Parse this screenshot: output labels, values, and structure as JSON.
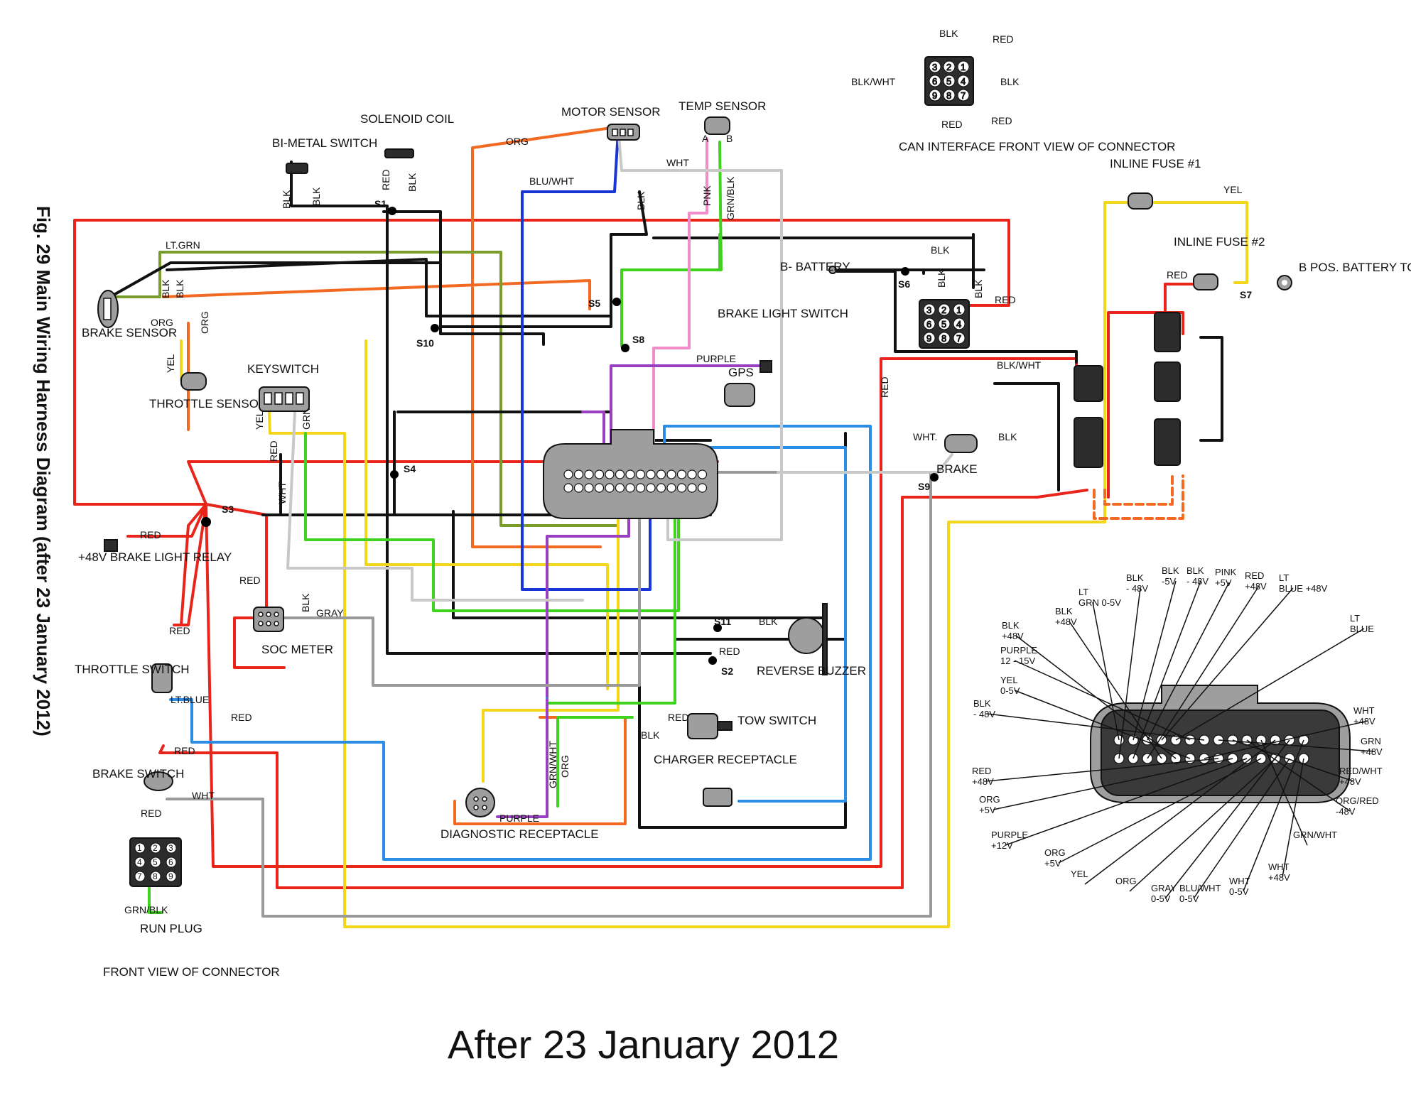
{
  "figure_caption": "Fig. 29  Main Wiring Harness Diagram (after 23 January 2012)",
  "bottom_title": "After 23 January 2012",
  "components": {
    "bimetal_switch": "BI-METAL SWITCH",
    "solenoid_coil": "SOLENOID COIL",
    "motor_sensor": "MOTOR SENSOR",
    "temp_sensor": "TEMP SENSOR",
    "temp_pin_a": "A",
    "temp_pin_b": "B",
    "brake_sensor": "BRAKE SENSOR",
    "throttle_sensor": "THROTTLE SENSOR",
    "keyswitch": "KEYSWITCH",
    "brake_light_relay": "+48V BRAKE LIGHT RELAY",
    "soc_meter": "SOC METER",
    "throttle_switch": "THROTTLE SWITCH",
    "brake_switch": "BRAKE SWITCH",
    "run_plug": "RUN PLUG",
    "front_view": "FRONT VIEW OF CONNECTOR",
    "diagnostic_receptacle": "DIAGNOSTIC RECEPTACLE",
    "charger_receptacle": "CHARGER RECEPTACLE",
    "tow_switch": "TOW SWITCH",
    "reverse_buzzer": "REVERSE BUZZER",
    "brake_light_switch": "BRAKE LIGHT SWITCH",
    "gps": "GPS",
    "b_battery": "B- BATTERY",
    "brake": "BRAKE",
    "can_interface": "CAN INTERFACE FRONT VIEW OF CONNECTOR",
    "inline_fuse_1": "INLINE FUSE #1",
    "inline_fuse_2": "INLINE FUSE #2",
    "b_pos_battery": "B POS. BATTERY TO SOLENOID"
  },
  "splices": [
    "S1",
    "S2",
    "S3",
    "S4",
    "S5",
    "S6",
    "S7",
    "S8",
    "S9",
    "S10",
    "S11"
  ],
  "wire_labels": {
    "org": "ORG",
    "blk": "BLK",
    "red": "RED",
    "wht": "WHT",
    "yel": "YEL",
    "blu_wht": "BLU/WHT",
    "pnk": "PNK",
    "grn_blk": "GRN/BLK",
    "lt_grn": "LT.GRN",
    "purple": "PURPLE",
    "gray": "GRAY",
    "lt_blue": "LT.BLUE",
    "grn": "GRN",
    "grn_wht": "GRN/WHT",
    "blk_wht": "BLK/WHT",
    "red_b": "RED",
    "wht_b": "WHT."
  },
  "can_connector": {
    "pins_row1": [
      "3",
      "2",
      "1"
    ],
    "pins_row2": [
      "6",
      "5",
      "4"
    ],
    "pins_row3": [
      "9",
      "8",
      "7"
    ],
    "labels": [
      "BLK",
      "RED",
      "BLK/WHT",
      "BLK",
      "RED",
      "RED"
    ]
  },
  "run_plug_pins": [
    "1",
    "2",
    "3",
    "4",
    "5",
    "6",
    "7",
    "8",
    "9"
  ],
  "controller_pinout": [
    "LT GRN 0-5V",
    "BLK - 48V",
    "BLK -5V",
    "BLK - 48V",
    "PINK +5V",
    "RED +48V",
    "LT BLUE +48V",
    "BLK +48V",
    "LT BLUE",
    "BLK +48V",
    "PURPLE 12 - 15V",
    "YEL 0-5V",
    "BLK - 48V",
    "WHT +48V",
    "GRN +48V",
    "RED +48V",
    "RED/WHT +48V",
    "ORG +5V",
    "ORG/RED -48V",
    "PURPLE +12V",
    "GRN/WHT",
    "ORG +5V",
    "YEL",
    "ORG",
    "GRAY 0-5V",
    "BLU/WHT 0-5V",
    "WHT 0-5V",
    "WHT +48V"
  ],
  "colors": {
    "red": "#e8241b",
    "black": "#111111",
    "orange": "#f26a21",
    "green": "#3fd21f",
    "olive": "#7a9c2a",
    "yellow": "#f3d51a",
    "blue": "#1a35d6",
    "lightblue": "#2a8ee6",
    "purple": "#9b3fc2",
    "pink": "#f08cc8",
    "gray": "#9a9a9a",
    "lightgray": "#c8c8c8"
  }
}
